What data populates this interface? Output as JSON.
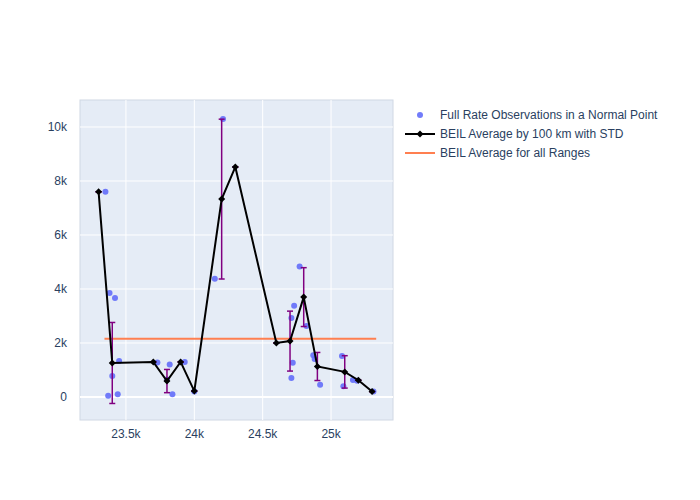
{
  "chart_data": {
    "type": "scatter",
    "xlim": [
      23164,
      25453
    ],
    "ylim": [
      -852,
      11000
    ],
    "xticks": [
      {
        "value": 23500,
        "label": "23.5k"
      },
      {
        "value": 24000,
        "label": "24k"
      },
      {
        "value": 24500,
        "label": "24.5k"
      },
      {
        "value": 25000,
        "label": "25k"
      }
    ],
    "yticks": [
      0,
      {
        "value": 2000,
        "label": "2k"
      },
      {
        "value": 4000,
        "label": "4k"
      },
      {
        "value": 6000,
        "label": "6k"
      },
      {
        "value": 8000,
        "label": "8k"
      },
      {
        "value": 10000,
        "label": "10k"
      }
    ],
    "grid": true,
    "legend": "right",
    "series": [
      {
        "name": "Full Rate Observations in a Normal Point",
        "type": "scatter",
        "marker": "circle",
        "color": "#636efa",
        "x": [
          23350,
          23380,
          23420,
          23370,
          23400,
          23440,
          23450,
          23730,
          23800,
          23820,
          23840,
          23930,
          24000,
          24150,
          24210,
          24710,
          24730,
          24710,
          24720,
          24770,
          24820,
          24870,
          24880,
          24920,
          25080,
          25090,
          25160,
          25190,
          25310
        ],
        "values": [
          7600,
          3850,
          3670,
          50,
          780,
          100,
          1330,
          1280,
          650,
          1200,
          100,
          1300,
          200,
          4380,
          10300,
          2930,
          3380,
          700,
          1270,
          4830,
          2630,
          1550,
          1410,
          450,
          1520,
          400,
          630,
          600,
          200
        ]
      },
      {
        "name": "BEIL Average by 100 km with STD",
        "type": "line",
        "marker": "diamond",
        "color": "#000000",
        "x": [
          23300,
          23400,
          23700,
          23800,
          23900,
          24000,
          24200,
          24300,
          24600,
          24700,
          24800,
          24900,
          25100,
          25200,
          25300
        ],
        "values": [
          7600,
          1260,
          1300,
          590,
          1300,
          220,
          7330,
          8520,
          2000,
          2070,
          3700,
          1130,
          930,
          620,
          200
        ],
        "error": [
          0,
          1500,
          0,
          430,
          0,
          0,
          2960,
          0,
          0,
          1110,
          1090,
          520,
          600,
          0,
          0
        ]
      },
      {
        "name": "BEIL Average for all Ranges",
        "type": "line",
        "color": "#ff7f50",
        "x": [
          23343,
          25330
        ],
        "values": [
          2160,
          2160
        ]
      }
    ]
  }
}
